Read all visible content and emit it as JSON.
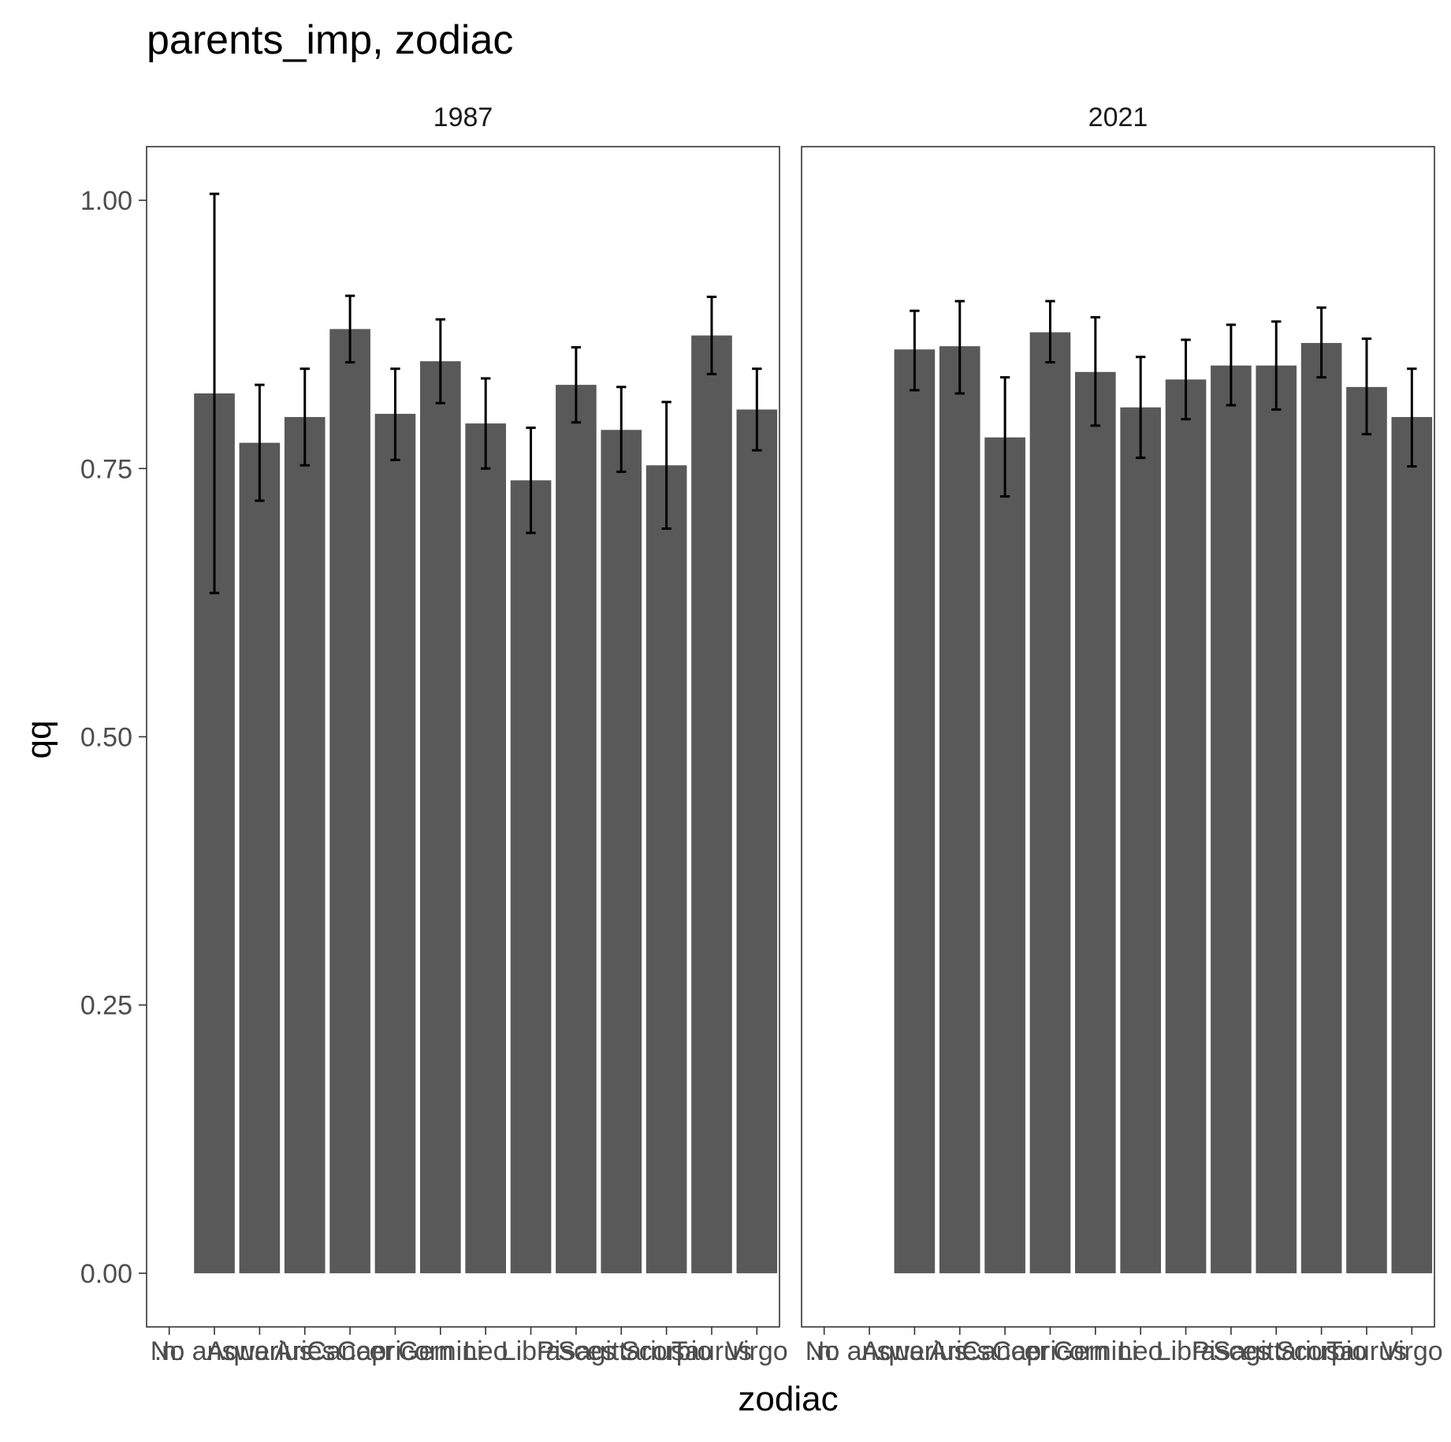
{
  "chart_data": {
    "type": "bar",
    "title": "parents_imp, zodiac",
    "xlabel": "zodiac",
    "ylabel": "qq",
    "ylim": [
      -0.05,
      1.05
    ],
    "yticks": [
      0.0,
      0.25,
      0.5,
      0.75,
      1.0
    ],
    "ytick_labels": [
      "0.00",
      "0.25",
      "0.50",
      "0.75",
      "1.00"
    ],
    "grid": false,
    "error_bars": true,
    "colors": {
      "bar": "#595959",
      "errorbar": "#000000",
      "panel_border": "#333333"
    },
    "categories": [
      ".n:",
      "No answer",
      "Aquarius",
      "Aries",
      "Cancer",
      "Capricorn",
      "Gemini",
      "Leo",
      "Libra",
      "Pisces",
      "Sagittarius",
      "Scorpio",
      "Taurus",
      "Virgo"
    ],
    "panels": [
      {
        "label": "1987",
        "values": [
          null,
          0.82,
          0.774,
          0.798,
          0.88,
          0.801,
          0.85,
          0.792,
          0.739,
          0.828,
          0.786,
          0.753,
          0.874,
          0.805
        ],
        "lower": [
          null,
          0.634,
          0.72,
          0.753,
          0.849,
          0.758,
          0.811,
          0.75,
          0.69,
          0.793,
          0.747,
          0.694,
          0.838,
          0.767
        ],
        "upper": [
          null,
          1.006,
          0.828,
          0.843,
          0.911,
          0.843,
          0.889,
          0.834,
          0.788,
          0.863,
          0.826,
          0.812,
          0.91,
          0.843
        ]
      },
      {
        "label": "2021",
        "values": [
          null,
          null,
          0.861,
          0.864,
          0.779,
          0.877,
          0.84,
          0.807,
          0.833,
          0.846,
          0.846,
          0.867,
          0.826,
          0.798
        ],
        "lower": [
          null,
          null,
          0.823,
          0.82,
          0.724,
          0.849,
          0.79,
          0.76,
          0.796,
          0.809,
          0.805,
          0.835,
          0.782,
          0.752
        ],
        "upper": [
          null,
          null,
          0.897,
          0.906,
          0.835,
          0.906,
          0.891,
          0.854,
          0.87,
          0.884,
          0.887,
          0.9,
          0.871,
          0.843
        ]
      }
    ]
  }
}
